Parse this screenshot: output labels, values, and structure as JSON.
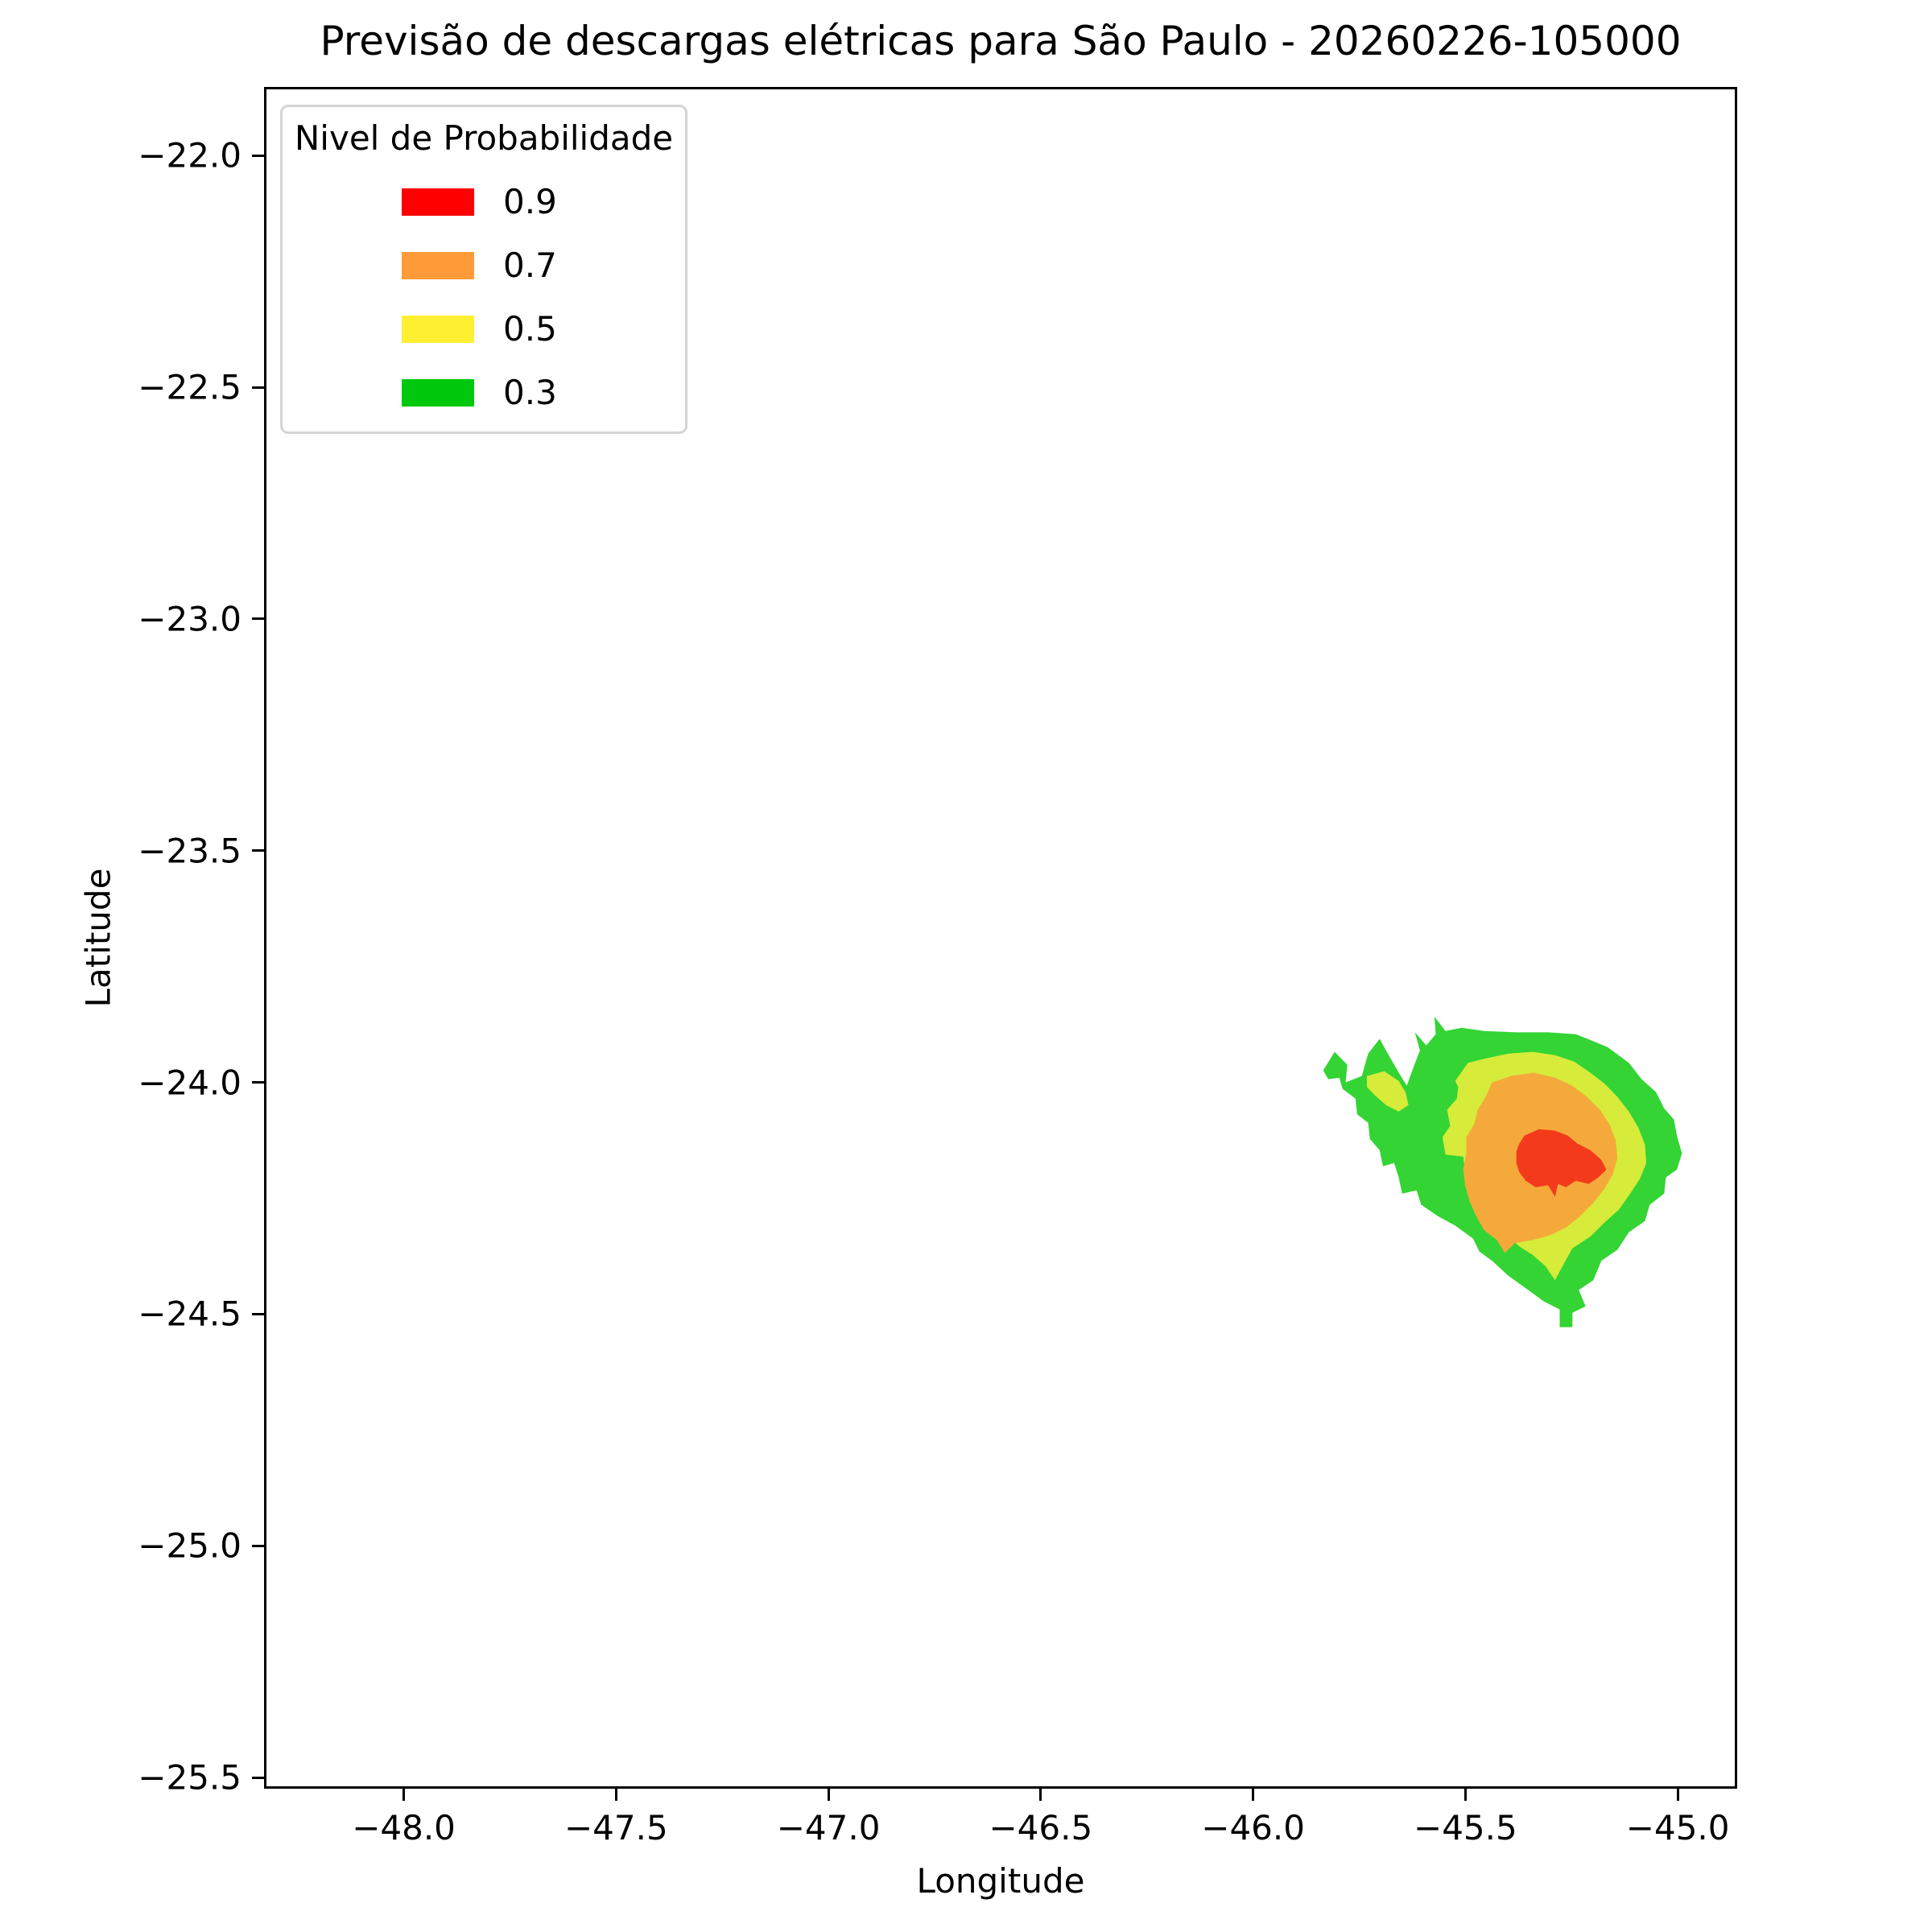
{
  "legend": {
    "title": "Nivel de Probabilidade",
    "entries": [
      {
        "label": "0.9",
        "color": "#FF0000"
      },
      {
        "label": "0.7",
        "color": "#FF9B38"
      },
      {
        "label": "0.5",
        "color": "#FFEF33"
      },
      {
        "label": "0.3",
        "color": "#00C90D"
      }
    ]
  },
  "chart_data": {
    "type": "contour",
    "title": "Previsão de descargas elétricas para São Paulo - 20260226-105000",
    "xlabel": "Longitude",
    "ylabel": "Latitude",
    "xlim": [
      -48.329,
      -44.86
    ],
    "ylim": [
      -25.524,
      -21.852
    ],
    "grid": false,
    "legend_position": "upper left",
    "xticks": {
      "values": [
        -48.0,
        -47.5,
        -47.0,
        -46.5,
        -46.0,
        -45.5,
        -45.0
      ],
      "labels": [
        "−48.0",
        "−47.5",
        "−47.0",
        "−46.5",
        "−46.0",
        "−45.5",
        "−45.0"
      ]
    },
    "yticks": {
      "values": [
        -22.0,
        -22.5,
        -23.0,
        -23.5,
        -24.0,
        -24.5,
        -25.0,
        -25.5
      ],
      "labels": [
        "−22.0",
        "−22.5",
        "−23.0",
        "−23.5",
        "−24.0",
        "−24.5",
        "−25.0",
        "−25.5"
      ]
    },
    "levels": [
      0.3,
      0.5,
      0.7,
      0.9
    ],
    "level_colors": {
      "0.3": "#33D433",
      "0.5": "#D6EB3A",
      "0.7": "#F5A93B",
      "0.9": "#F33A1B"
    },
    "storm_center": {
      "lon": -45.3,
      "lat": -24.17
    },
    "regions": [
      {
        "name": "prob-0.3",
        "level": 0.3,
        "color": "#33D433",
        "polygon": [
          [
            -45.835,
            -23.974
          ],
          [
            -45.808,
            -23.934
          ],
          [
            -45.778,
            -23.962
          ],
          [
            -45.782,
            -24.0
          ],
          [
            -45.744,
            -23.986
          ],
          [
            -45.729,
            -23.938
          ],
          [
            -45.702,
            -23.906
          ],
          [
            -45.679,
            -23.944
          ],
          [
            -45.657,
            -23.979
          ],
          [
            -45.638,
            -24.007
          ],
          [
            -45.623,
            -23.969
          ],
          [
            -45.607,
            -23.931
          ],
          [
            -45.619,
            -23.892
          ],
          [
            -45.592,
            -23.92
          ],
          [
            -45.57,
            -23.896
          ],
          [
            -45.573,
            -23.858
          ],
          [
            -45.547,
            -23.889
          ],
          [
            -45.509,
            -23.882
          ],
          [
            -45.456,
            -23.889
          ],
          [
            -45.38,
            -23.892
          ],
          [
            -45.305,
            -23.892
          ],
          [
            -45.24,
            -23.896
          ],
          [
            -45.202,
            -23.91
          ],
          [
            -45.165,
            -23.924
          ],
          [
            -45.115,
            -23.958
          ],
          [
            -45.085,
            -23.993
          ],
          [
            -45.051,
            -24.021
          ],
          [
            -45.032,
            -24.056
          ],
          [
            -45.009,
            -24.08
          ],
          [
            -45.002,
            -24.115
          ],
          [
            -44.99,
            -24.153
          ],
          [
            -45.002,
            -24.188
          ],
          [
            -45.028,
            -24.205
          ],
          [
            -45.032,
            -24.24
          ],
          [
            -45.066,
            -24.264
          ],
          [
            -45.077,
            -24.299
          ],
          [
            -45.115,
            -24.323
          ],
          [
            -45.142,
            -24.361
          ],
          [
            -45.18,
            -24.385
          ],
          [
            -45.199,
            -24.427
          ],
          [
            -45.233,
            -24.448
          ],
          [
            -45.217,
            -24.483
          ],
          [
            -45.248,
            -24.497
          ],
          [
            -45.248,
            -24.528
          ],
          [
            -45.278,
            -24.528
          ],
          [
            -45.278,
            -24.49
          ],
          [
            -45.316,
            -24.472
          ],
          [
            -45.358,
            -24.444
          ],
          [
            -45.399,
            -24.417
          ],
          [
            -45.437,
            -24.385
          ],
          [
            -45.467,
            -24.365
          ],
          [
            -45.482,
            -24.337
          ],
          [
            -45.524,
            -24.309
          ],
          [
            -45.566,
            -24.288
          ],
          [
            -45.604,
            -24.264
          ],
          [
            -45.615,
            -24.233
          ],
          [
            -45.649,
            -24.24
          ],
          [
            -45.657,
            -24.205
          ],
          [
            -45.668,
            -24.174
          ],
          [
            -45.694,
            -24.181
          ],
          [
            -45.702,
            -24.146
          ],
          [
            -45.725,
            -24.122
          ],
          [
            -45.729,
            -24.087
          ],
          [
            -45.755,
            -24.069
          ],
          [
            -45.759,
            -24.035
          ],
          [
            -45.789,
            -24.014
          ],
          [
            -45.797,
            -23.99
          ],
          [
            -45.823,
            -23.993
          ]
        ]
      },
      {
        "name": "prob-0.5-west-patch",
        "level": 0.5,
        "color": "#D6EB3A",
        "polygon": [
          [
            -45.732,
            -23.986
          ],
          [
            -45.691,
            -23.976
          ],
          [
            -45.657,
            -23.997
          ],
          [
            -45.641,
            -24.021
          ],
          [
            -45.634,
            -24.049
          ],
          [
            -45.657,
            -24.063
          ],
          [
            -45.687,
            -24.049
          ],
          [
            -45.713,
            -24.028
          ],
          [
            -45.732,
            -24.01
          ]
        ]
      },
      {
        "name": "prob-0.5",
        "level": 0.5,
        "color": "#D6EB3A",
        "polygon": [
          [
            -45.524,
            -23.997
          ],
          [
            -45.494,
            -23.958
          ],
          [
            -45.452,
            -23.948
          ],
          [
            -45.399,
            -23.938
          ],
          [
            -45.342,
            -23.934
          ],
          [
            -45.289,
            -23.941
          ],
          [
            -45.244,
            -23.955
          ],
          [
            -45.206,
            -23.979
          ],
          [
            -45.172,
            -24.003
          ],
          [
            -45.142,
            -24.031
          ],
          [
            -45.115,
            -24.063
          ],
          [
            -45.093,
            -24.097
          ],
          [
            -45.077,
            -24.135
          ],
          [
            -45.074,
            -24.174
          ],
          [
            -45.089,
            -24.208
          ],
          [
            -45.112,
            -24.24
          ],
          [
            -45.138,
            -24.274
          ],
          [
            -45.172,
            -24.302
          ],
          [
            -45.206,
            -24.333
          ],
          [
            -45.248,
            -24.358
          ],
          [
            -45.271,
            -24.396
          ],
          [
            -45.289,
            -24.427
          ],
          [
            -45.312,
            -24.396
          ],
          [
            -45.342,
            -24.372
          ],
          [
            -45.373,
            -24.354
          ],
          [
            -45.411,
            -24.323
          ],
          [
            -45.448,
            -24.292
          ],
          [
            -45.471,
            -24.253
          ],
          [
            -45.486,
            -24.219
          ],
          [
            -45.501,
            -24.191
          ],
          [
            -45.505,
            -24.16
          ],
          [
            -45.547,
            -24.156
          ],
          [
            -45.554,
            -24.118
          ],
          [
            -45.536,
            -24.094
          ],
          [
            -45.543,
            -24.059
          ],
          [
            -45.52,
            -24.035
          ],
          [
            -45.517,
            -24.01
          ]
        ]
      },
      {
        "name": "prob-0.7",
        "level": 0.7,
        "color": "#F5A93B",
        "polygon": [
          [
            -45.437,
            -24.0
          ],
          [
            -45.392,
            -23.986
          ],
          [
            -45.339,
            -23.979
          ],
          [
            -45.289,
            -23.99
          ],
          [
            -45.248,
            -24.007
          ],
          [
            -45.214,
            -24.031
          ],
          [
            -45.183,
            -24.059
          ],
          [
            -45.161,
            -24.09
          ],
          [
            -45.146,
            -24.125
          ],
          [
            -45.142,
            -24.163
          ],
          [
            -45.153,
            -24.198
          ],
          [
            -45.172,
            -24.229
          ],
          [
            -45.199,
            -24.26
          ],
          [
            -45.229,
            -24.288
          ],
          [
            -45.263,
            -24.313
          ],
          [
            -45.301,
            -24.33
          ],
          [
            -45.342,
            -24.34
          ],
          [
            -45.384,
            -24.347
          ],
          [
            -45.407,
            -24.368
          ],
          [
            -45.426,
            -24.34
          ],
          [
            -45.456,
            -24.319
          ],
          [
            -45.475,
            -24.288
          ],
          [
            -45.49,
            -24.257
          ],
          [
            -45.501,
            -24.222
          ],
          [
            -45.505,
            -24.188
          ],
          [
            -45.498,
            -24.153
          ],
          [
            -45.498,
            -24.118
          ],
          [
            -45.479,
            -24.09
          ],
          [
            -45.471,
            -24.059
          ],
          [
            -45.452,
            -24.031
          ]
        ]
      },
      {
        "name": "prob-0.9",
        "level": 0.9,
        "color": "#F33A1B",
        "polygon": [
          [
            -45.361,
            -24.115
          ],
          [
            -45.327,
            -24.101
          ],
          [
            -45.289,
            -24.104
          ],
          [
            -45.259,
            -24.115
          ],
          [
            -45.236,
            -24.132
          ],
          [
            -45.206,
            -24.146
          ],
          [
            -45.18,
            -24.167
          ],
          [
            -45.168,
            -24.188
          ],
          [
            -45.187,
            -24.205
          ],
          [
            -45.21,
            -24.219
          ],
          [
            -45.24,
            -24.212
          ],
          [
            -45.263,
            -24.226
          ],
          [
            -45.282,
            -24.219
          ],
          [
            -45.289,
            -24.247
          ],
          [
            -45.305,
            -24.222
          ],
          [
            -45.335,
            -24.226
          ],
          [
            -45.358,
            -24.212
          ],
          [
            -45.373,
            -24.194
          ],
          [
            -45.38,
            -24.174
          ],
          [
            -45.38,
            -24.149
          ],
          [
            -45.373,
            -24.132
          ]
        ]
      }
    ]
  }
}
